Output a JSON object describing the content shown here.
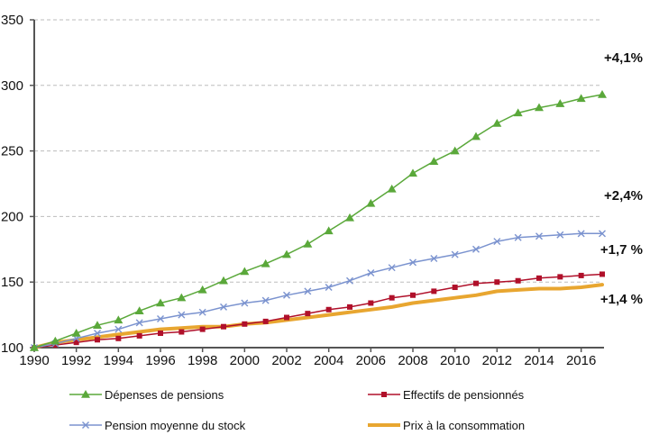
{
  "chart_data": {
    "type": "line",
    "title": "",
    "xlabel": "",
    "ylabel": "",
    "x": [
      1990,
      1991,
      1992,
      1993,
      1994,
      1995,
      1996,
      1997,
      1998,
      1999,
      2000,
      2001,
      2002,
      2003,
      2004,
      2005,
      2006,
      2007,
      2008,
      2009,
      2010,
      2011,
      2012,
      2013,
      2014,
      2015,
      2016,
      2017
    ],
    "xlim": [
      1990,
      2017
    ],
    "ylim": [
      100,
      350
    ],
    "x_ticks": [
      "1990",
      "1992",
      "1994",
      "1996",
      "1998",
      "2000",
      "2002",
      "2004",
      "2006",
      "2008",
      "2010",
      "2012",
      "2014",
      "2016"
    ],
    "y_ticks": [
      "100",
      "150",
      "200",
      "250",
      "300",
      "350"
    ],
    "grid": "horizontal dashed",
    "legend_position": "bottom",
    "series": [
      {
        "name": "Dépenses de pensions",
        "color": "#5aa83a",
        "marker": "triangle",
        "annotation": "+4,1%",
        "values": [
          100,
          105,
          111,
          117,
          121,
          128,
          134,
          138,
          144,
          151,
          158,
          164,
          171,
          179,
          189,
          199,
          210,
          221,
          233,
          242,
          250,
          261,
          271,
          279,
          283,
          286,
          290,
          293
        ]
      },
      {
        "name": "Effectifs de pensionnés",
        "color": "#b0102a",
        "marker": "square",
        "annotation": "+1,7 %",
        "values": [
          100,
          102,
          104,
          106,
          107,
          109,
          111,
          112,
          114,
          116,
          118,
          120,
          123,
          126,
          129,
          131,
          134,
          138,
          140,
          143,
          146,
          149,
          150,
          151,
          153,
          154,
          155,
          156
        ]
      },
      {
        "name": "Pension moyenne du stock",
        "color": "#7b93cf",
        "marker": "x",
        "annotation": "+2,4%",
        "values": [
          100,
          103,
          107,
          111,
          114,
          119,
          122,
          125,
          127,
          131,
          134,
          136,
          140,
          143,
          146,
          151,
          157,
          161,
          165,
          168,
          171,
          175,
          181,
          184,
          185,
          186,
          187,
          187
        ]
      },
      {
        "name": "Prix à la consommation",
        "color": "#e8a630",
        "marker": "none",
        "annotation": "+1,4 %",
        "values": [
          100,
          104,
          106,
          108,
          110,
          112,
          114,
          115,
          116,
          116,
          118,
          119,
          121,
          123,
          125,
          127,
          129,
          131,
          134,
          136,
          138,
          140,
          143,
          144,
          145,
          145,
          146,
          148
        ]
      }
    ]
  }
}
